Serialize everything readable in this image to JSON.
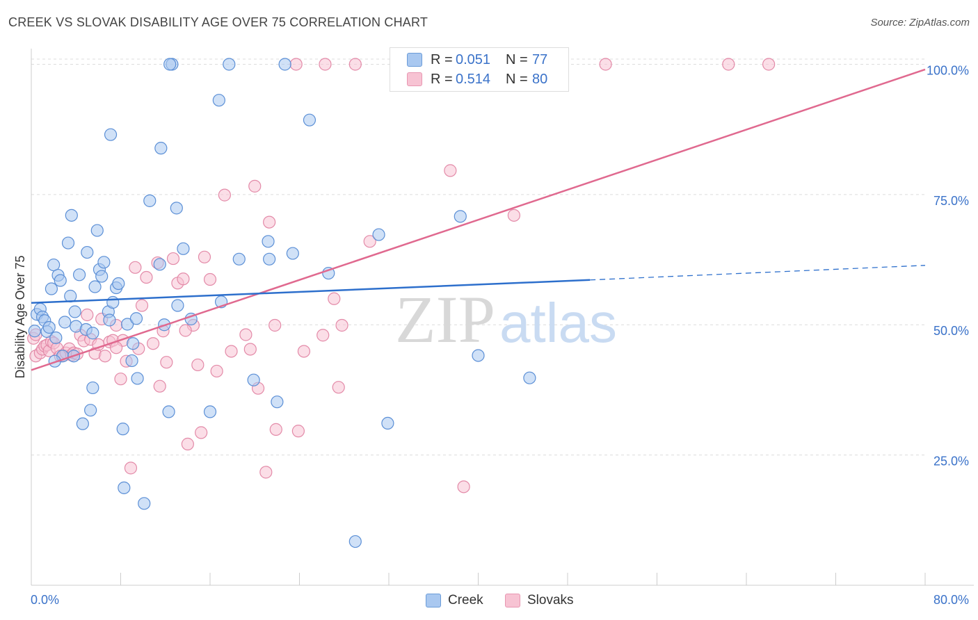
{
  "title": "CREEK VS SLOVAK DISABILITY AGE OVER 75 CORRELATION CHART",
  "source": "Source: ZipAtlas.com",
  "watermark": {
    "zip": "ZIP",
    "atlas": "atlas"
  },
  "legend_top": [
    {
      "series": "Creek",
      "r_label": "R =",
      "r_value": "0.051",
      "n_label": "N =",
      "n_value": "77",
      "color": "#a9c8f0"
    },
    {
      "series": "Slovaks",
      "r_label": "R =",
      "r_value": "0.514",
      "n_label": "N =",
      "n_value": "80",
      "color": "#f7c3d3"
    }
  ],
  "legend_bottom": [
    "Creek",
    "Slovaks"
  ],
  "colors": {
    "creek_fill": "#a9c8f0",
    "creek_stroke": "#5b8fd6",
    "creek_line": "#2d6fcc",
    "slovak_fill": "#f7c3d3",
    "slovak_stroke": "#e38aa8",
    "slovak_line": "#e0698f",
    "grid": "#dcdcdc",
    "tick_label": "#3a72c9"
  },
  "chart_data": {
    "type": "scatter",
    "title": "CREEK VS SLOVAK DISABILITY AGE OVER 75 CORRELATION CHART",
    "xlabel": "",
    "ylabel": "Disability Age Over 75",
    "xlim": [
      0,
      80
    ],
    "ylim": [
      0,
      103
    ],
    "x_tick_labels": [
      "0.0%",
      "80.0%"
    ],
    "y_ticks": [
      25,
      50,
      75,
      100
    ],
    "y_tick_labels": [
      "25.0%",
      "50.0%",
      "75.0%",
      "100.0%"
    ],
    "grid": true,
    "legend_position": "top-center",
    "series": [
      {
        "name": "Creek",
        "r": 0.051,
        "n": 77,
        "trend": {
          "x0": 0,
          "y0": 54.2,
          "x1": 50,
          "y1": 58.6,
          "dashed_to_x": 80,
          "dashed_to_y": 61.4
        },
        "points": [
          [
            0.3,
            48.8
          ],
          [
            0.5,
            52.0
          ],
          [
            0.8,
            53.0
          ],
          [
            1.0,
            51.5
          ],
          [
            1.2,
            50.8
          ],
          [
            1.4,
            48.7
          ],
          [
            1.6,
            49.5
          ],
          [
            1.8,
            56.9
          ],
          [
            2.0,
            61.5
          ],
          [
            2.2,
            47.5
          ],
          [
            2.4,
            59.5
          ],
          [
            2.6,
            58.5
          ],
          [
            2.8,
            44.0
          ],
          [
            3.0,
            50.5
          ],
          [
            3.3,
            65.7
          ],
          [
            3.5,
            55.5
          ],
          [
            3.6,
            71.0
          ],
          [
            3.9,
            52.5
          ],
          [
            4.0,
            49.7
          ],
          [
            4.3,
            59.6
          ],
          [
            4.6,
            31.0
          ],
          [
            4.9,
            49.1
          ],
          [
            5.0,
            63.9
          ],
          [
            5.3,
            33.6
          ],
          [
            5.5,
            48.4
          ],
          [
            5.7,
            57.3
          ],
          [
            5.9,
            68.1
          ],
          [
            6.1,
            60.6
          ],
          [
            6.3,
            59.3
          ],
          [
            6.5,
            62.0
          ],
          [
            6.9,
            52.5
          ],
          [
            7.1,
            86.5
          ],
          [
            7.3,
            54.3
          ],
          [
            7.6,
            57.1
          ],
          [
            7.8,
            57.9
          ],
          [
            8.2,
            30.0
          ],
          [
            8.3,
            18.7
          ],
          [
            8.6,
            50.1
          ],
          [
            9.0,
            43.1
          ],
          [
            9.1,
            46.4
          ],
          [
            9.5,
            39.7
          ],
          [
            10.1,
            15.7
          ],
          [
            10.6,
            73.8
          ],
          [
            11.5,
            61.6
          ],
          [
            11.9,
            50.0
          ],
          [
            12.3,
            33.3
          ],
          [
            12.6,
            100
          ],
          [
            13.0,
            72.4
          ],
          [
            13.1,
            53.7
          ],
          [
            13.6,
            64.6
          ],
          [
            14.3,
            51.1
          ],
          [
            16.0,
            33.3
          ],
          [
            16.8,
            93.1
          ],
          [
            17.0,
            54.4
          ],
          [
            17.7,
            100
          ],
          [
            18.6,
            62.6
          ],
          [
            19.9,
            39.4
          ],
          [
            21.2,
            66.0
          ],
          [
            21.3,
            62.6
          ],
          [
            22.0,
            35.2
          ],
          [
            22.7,
            100
          ],
          [
            23.4,
            63.7
          ],
          [
            24.9,
            89.3
          ],
          [
            26.6,
            59.9
          ],
          [
            29.0,
            8.4
          ],
          [
            31.1,
            67.3
          ],
          [
            31.9,
            31.1
          ],
          [
            38.4,
            70.8
          ],
          [
            40.0,
            44.1
          ],
          [
            44.6,
            39.8
          ],
          [
            11.6,
            83.9
          ],
          [
            5.5,
            37.9
          ],
          [
            7.0,
            50.9
          ],
          [
            9.4,
            51.2
          ],
          [
            3.8,
            44.0
          ],
          [
            2.1,
            43.0
          ],
          [
            12.4,
            100
          ]
        ]
      },
      {
        "name": "Slovaks",
        "r": 0.514,
        "n": 80,
        "trend": {
          "x0": 0,
          "y0": 41.3,
          "x1": 80,
          "y1": 99.0
        },
        "points": [
          [
            0.2,
            47.4
          ],
          [
            0.4,
            44.0
          ],
          [
            0.8,
            44.6
          ],
          [
            1.0,
            45.3
          ],
          [
            1.2,
            45.9
          ],
          [
            1.4,
            46.1
          ],
          [
            1.6,
            45.0
          ],
          [
            1.8,
            46.8
          ],
          [
            2.0,
            46.5
          ],
          [
            2.3,
            45.5
          ],
          [
            2.6,
            44.0
          ],
          [
            2.9,
            44.1
          ],
          [
            3.1,
            44.6
          ],
          [
            3.4,
            45.4
          ],
          [
            3.6,
            44.2
          ],
          [
            3.8,
            44.6
          ],
          [
            4.1,
            44.4
          ],
          [
            4.4,
            48.0
          ],
          [
            4.7,
            46.9
          ],
          [
            5.0,
            51.9
          ],
          [
            5.3,
            47.2
          ],
          [
            5.7,
            44.5
          ],
          [
            6.0,
            46.2
          ],
          [
            6.3,
            51.1
          ],
          [
            6.6,
            44.0
          ],
          [
            7.0,
            46.7
          ],
          [
            7.3,
            47.0
          ],
          [
            7.6,
            49.9
          ],
          [
            8.0,
            39.6
          ],
          [
            8.2,
            47.0
          ],
          [
            8.5,
            43.0
          ],
          [
            8.9,
            22.5
          ],
          [
            9.3,
            61.0
          ],
          [
            9.6,
            45.4
          ],
          [
            9.9,
            53.7
          ],
          [
            10.3,
            59.1
          ],
          [
            10.9,
            46.4
          ],
          [
            11.3,
            61.9
          ],
          [
            11.5,
            38.2
          ],
          [
            11.8,
            48.8
          ],
          [
            12.1,
            42.8
          ],
          [
            12.7,
            62.7
          ],
          [
            13.1,
            58.0
          ],
          [
            13.6,
            58.8
          ],
          [
            14.0,
            27.1
          ],
          [
            14.5,
            49.9
          ],
          [
            14.9,
            42.3
          ],
          [
            15.2,
            29.3
          ],
          [
            15.5,
            63.0
          ],
          [
            16.0,
            58.7
          ],
          [
            16.6,
            41.1
          ],
          [
            17.3,
            74.9
          ],
          [
            17.9,
            44.9
          ],
          [
            19.2,
            48.1
          ],
          [
            19.6,
            45.3
          ],
          [
            20.0,
            76.6
          ],
          [
            20.3,
            37.8
          ],
          [
            21.0,
            21.7
          ],
          [
            21.3,
            69.7
          ],
          [
            21.8,
            49.9
          ],
          [
            21.9,
            29.9
          ],
          [
            23.9,
            29.6
          ],
          [
            23.7,
            100
          ],
          [
            24.4,
            44.9
          ],
          [
            26.1,
            48.0
          ],
          [
            26.3,
            100
          ],
          [
            27.1,
            55.0
          ],
          [
            27.8,
            49.9
          ],
          [
            27.5,
            38.0
          ],
          [
            29.0,
            100
          ],
          [
            30.3,
            66.0
          ],
          [
            37.5,
            79.6
          ],
          [
            38.7,
            18.9
          ],
          [
            43.2,
            71.0
          ],
          [
            51.4,
            100
          ],
          [
            62.4,
            100
          ],
          [
            66.0,
            100
          ],
          [
            13.8,
            48.9
          ],
          [
            7.6,
            45.6
          ],
          [
            0.4,
            48.1
          ]
        ]
      }
    ]
  }
}
